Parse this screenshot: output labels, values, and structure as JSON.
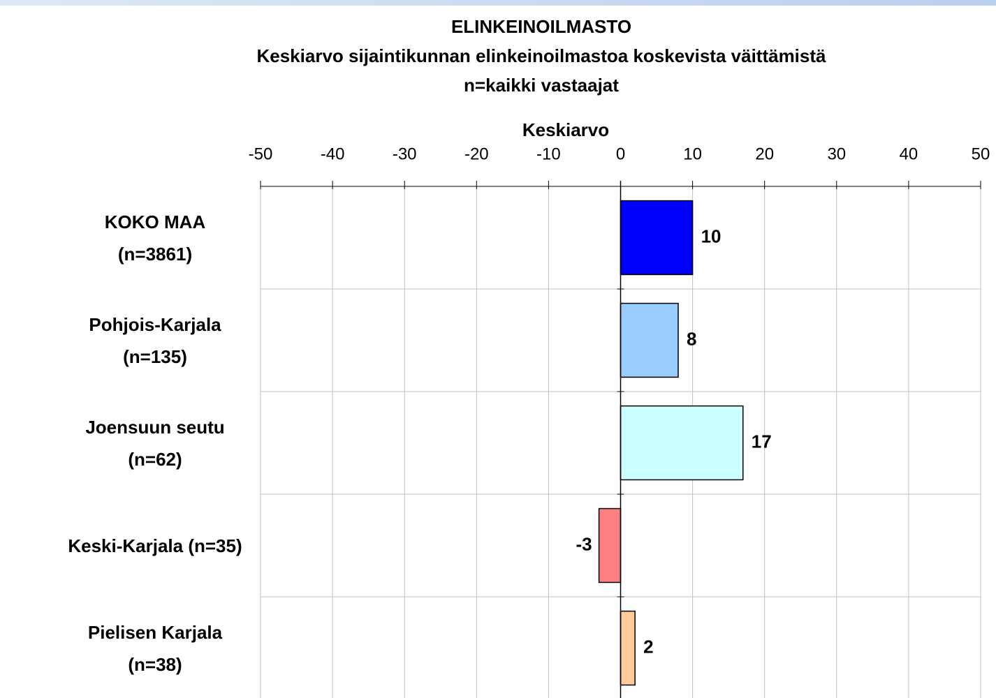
{
  "chart_data": {
    "type": "bar",
    "orientation": "horizontal",
    "title": "ELINKEINOILMASTO",
    "subtitle": [
      "Keskiarvo sijaintikunnan elinkeinoilmastoa koskevista väittämistä",
      "n=kaikki vastaajat"
    ],
    "x_label": "Keskiarvo",
    "categories": [
      "KOKO MAA (n=3861)",
      "Pohjois-Karjala (n=135)",
      "Joensuun seutu (n=62)",
      "Keski-Karjala (n=35)",
      "Pielisen Karjala (n=38)"
    ],
    "values": [
      10,
      8,
      17,
      -3,
      2
    ],
    "colors": [
      "#0000ff",
      "#99ccff",
      "#ccffff",
      "#ff8080",
      "#ffcc99"
    ],
    "xlim": [
      -50,
      50
    ],
    "xticks": [
      -50,
      -40,
      -30,
      -20,
      -10,
      0,
      10,
      20,
      30,
      40,
      50
    ],
    "grid": true
  }
}
